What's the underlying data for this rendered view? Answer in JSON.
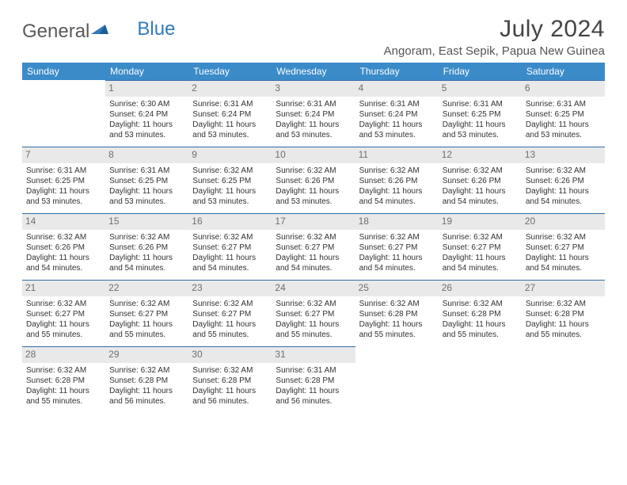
{
  "logo": {
    "general": "General",
    "blue": "Blue"
  },
  "title": "July 2024",
  "location": "Angoram, East Sepik, Papua New Guinea",
  "colors": {
    "header_bg": "#3b8bc9",
    "header_text": "#ffffff",
    "daynum_bg": "#e9e9e9",
    "daynum_text": "#6f6f6f",
    "border_top": "#2f6fa8",
    "body_text": "#323232"
  },
  "weekdays": [
    "Sunday",
    "Monday",
    "Tuesday",
    "Wednesday",
    "Thursday",
    "Friday",
    "Saturday"
  ],
  "weeks": [
    [
      {
        "day": "",
        "sunrise": "",
        "sunset": "",
        "daylight": ""
      },
      {
        "day": "1",
        "sunrise": "Sunrise: 6:30 AM",
        "sunset": "Sunset: 6:24 PM",
        "daylight": "Daylight: 11 hours and 53 minutes."
      },
      {
        "day": "2",
        "sunrise": "Sunrise: 6:31 AM",
        "sunset": "Sunset: 6:24 PM",
        "daylight": "Daylight: 11 hours and 53 minutes."
      },
      {
        "day": "3",
        "sunrise": "Sunrise: 6:31 AM",
        "sunset": "Sunset: 6:24 PM",
        "daylight": "Daylight: 11 hours and 53 minutes."
      },
      {
        "day": "4",
        "sunrise": "Sunrise: 6:31 AM",
        "sunset": "Sunset: 6:24 PM",
        "daylight": "Daylight: 11 hours and 53 minutes."
      },
      {
        "day": "5",
        "sunrise": "Sunrise: 6:31 AM",
        "sunset": "Sunset: 6:25 PM",
        "daylight": "Daylight: 11 hours and 53 minutes."
      },
      {
        "day": "6",
        "sunrise": "Sunrise: 6:31 AM",
        "sunset": "Sunset: 6:25 PM",
        "daylight": "Daylight: 11 hours and 53 minutes."
      }
    ],
    [
      {
        "day": "7",
        "sunrise": "Sunrise: 6:31 AM",
        "sunset": "Sunset: 6:25 PM",
        "daylight": "Daylight: 11 hours and 53 minutes."
      },
      {
        "day": "8",
        "sunrise": "Sunrise: 6:31 AM",
        "sunset": "Sunset: 6:25 PM",
        "daylight": "Daylight: 11 hours and 53 minutes."
      },
      {
        "day": "9",
        "sunrise": "Sunrise: 6:32 AM",
        "sunset": "Sunset: 6:25 PM",
        "daylight": "Daylight: 11 hours and 53 minutes."
      },
      {
        "day": "10",
        "sunrise": "Sunrise: 6:32 AM",
        "sunset": "Sunset: 6:26 PM",
        "daylight": "Daylight: 11 hours and 53 minutes."
      },
      {
        "day": "11",
        "sunrise": "Sunrise: 6:32 AM",
        "sunset": "Sunset: 6:26 PM",
        "daylight": "Daylight: 11 hours and 54 minutes."
      },
      {
        "day": "12",
        "sunrise": "Sunrise: 6:32 AM",
        "sunset": "Sunset: 6:26 PM",
        "daylight": "Daylight: 11 hours and 54 minutes."
      },
      {
        "day": "13",
        "sunrise": "Sunrise: 6:32 AM",
        "sunset": "Sunset: 6:26 PM",
        "daylight": "Daylight: 11 hours and 54 minutes."
      }
    ],
    [
      {
        "day": "14",
        "sunrise": "Sunrise: 6:32 AM",
        "sunset": "Sunset: 6:26 PM",
        "daylight": "Daylight: 11 hours and 54 minutes."
      },
      {
        "day": "15",
        "sunrise": "Sunrise: 6:32 AM",
        "sunset": "Sunset: 6:26 PM",
        "daylight": "Daylight: 11 hours and 54 minutes."
      },
      {
        "day": "16",
        "sunrise": "Sunrise: 6:32 AM",
        "sunset": "Sunset: 6:27 PM",
        "daylight": "Daylight: 11 hours and 54 minutes."
      },
      {
        "day": "17",
        "sunrise": "Sunrise: 6:32 AM",
        "sunset": "Sunset: 6:27 PM",
        "daylight": "Daylight: 11 hours and 54 minutes."
      },
      {
        "day": "18",
        "sunrise": "Sunrise: 6:32 AM",
        "sunset": "Sunset: 6:27 PM",
        "daylight": "Daylight: 11 hours and 54 minutes."
      },
      {
        "day": "19",
        "sunrise": "Sunrise: 6:32 AM",
        "sunset": "Sunset: 6:27 PM",
        "daylight": "Daylight: 11 hours and 54 minutes."
      },
      {
        "day": "20",
        "sunrise": "Sunrise: 6:32 AM",
        "sunset": "Sunset: 6:27 PM",
        "daylight": "Daylight: 11 hours and 54 minutes."
      }
    ],
    [
      {
        "day": "21",
        "sunrise": "Sunrise: 6:32 AM",
        "sunset": "Sunset: 6:27 PM",
        "daylight": "Daylight: 11 hours and 55 minutes."
      },
      {
        "day": "22",
        "sunrise": "Sunrise: 6:32 AM",
        "sunset": "Sunset: 6:27 PM",
        "daylight": "Daylight: 11 hours and 55 minutes."
      },
      {
        "day": "23",
        "sunrise": "Sunrise: 6:32 AM",
        "sunset": "Sunset: 6:27 PM",
        "daylight": "Daylight: 11 hours and 55 minutes."
      },
      {
        "day": "24",
        "sunrise": "Sunrise: 6:32 AM",
        "sunset": "Sunset: 6:27 PM",
        "daylight": "Daylight: 11 hours and 55 minutes."
      },
      {
        "day": "25",
        "sunrise": "Sunrise: 6:32 AM",
        "sunset": "Sunset: 6:28 PM",
        "daylight": "Daylight: 11 hours and 55 minutes."
      },
      {
        "day": "26",
        "sunrise": "Sunrise: 6:32 AM",
        "sunset": "Sunset: 6:28 PM",
        "daylight": "Daylight: 11 hours and 55 minutes."
      },
      {
        "day": "27",
        "sunrise": "Sunrise: 6:32 AM",
        "sunset": "Sunset: 6:28 PM",
        "daylight": "Daylight: 11 hours and 55 minutes."
      }
    ],
    [
      {
        "day": "28",
        "sunrise": "Sunrise: 6:32 AM",
        "sunset": "Sunset: 6:28 PM",
        "daylight": "Daylight: 11 hours and 55 minutes."
      },
      {
        "day": "29",
        "sunrise": "Sunrise: 6:32 AM",
        "sunset": "Sunset: 6:28 PM",
        "daylight": "Daylight: 11 hours and 56 minutes."
      },
      {
        "day": "30",
        "sunrise": "Sunrise: 6:32 AM",
        "sunset": "Sunset: 6:28 PM",
        "daylight": "Daylight: 11 hours and 56 minutes."
      },
      {
        "day": "31",
        "sunrise": "Sunrise: 6:31 AM",
        "sunset": "Sunset: 6:28 PM",
        "daylight": "Daylight: 11 hours and 56 minutes."
      },
      {
        "day": "",
        "sunrise": "",
        "sunset": "",
        "daylight": ""
      },
      {
        "day": "",
        "sunrise": "",
        "sunset": "",
        "daylight": ""
      },
      {
        "day": "",
        "sunrise": "",
        "sunset": "",
        "daylight": ""
      }
    ]
  ]
}
